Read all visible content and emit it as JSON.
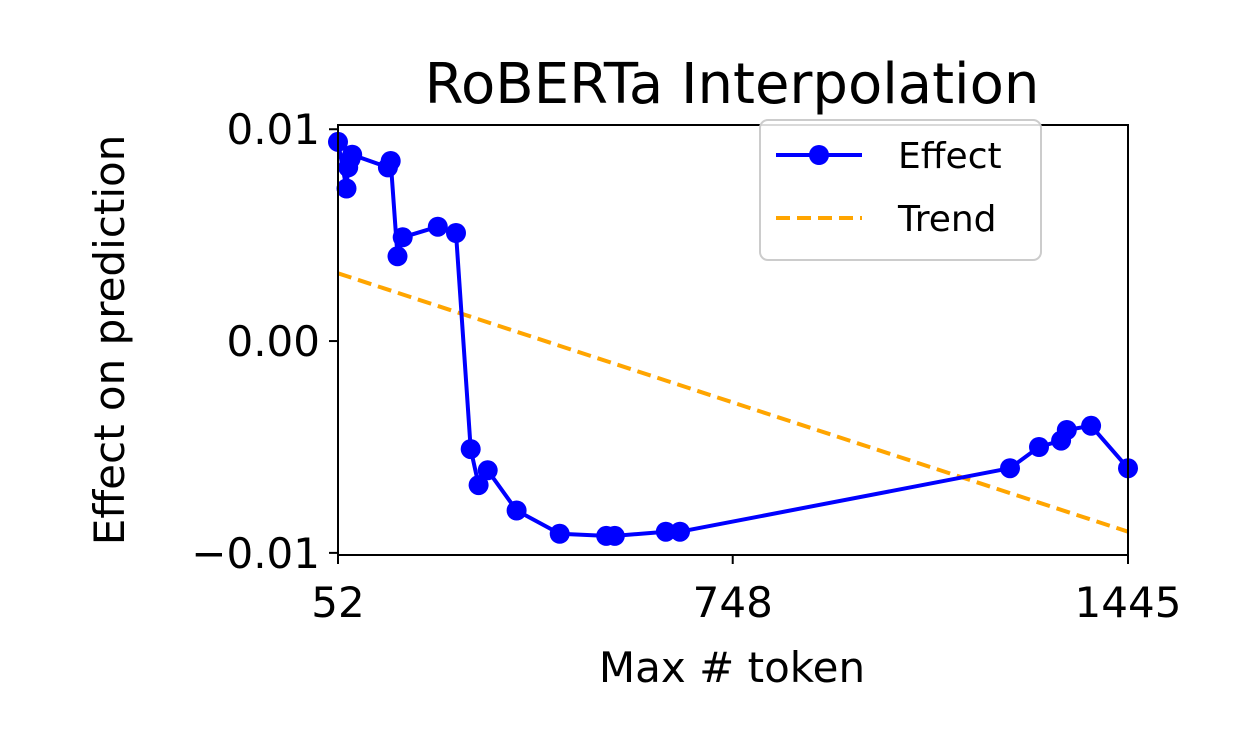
{
  "chart_data": {
    "type": "line",
    "title": "RoBERTa Interpolation",
    "xlabel": "Max # token",
    "ylabel": "Effect on prediction",
    "xlim": [
      52,
      1445
    ],
    "ylim": [
      -0.0101,
      0.0102
    ],
    "xticks": [
      52,
      748,
      1445
    ],
    "xtick_labels": [
      "52",
      "748",
      "1445"
    ],
    "yticks": [
      -0.01,
      0.0,
      0.01
    ],
    "ytick_labels": [
      "−0.01",
      "0.00",
      "0.01"
    ],
    "grid": false,
    "legend_position": "top-right",
    "series": [
      {
        "name": "Effect",
        "color": "#0000ff",
        "style": "solid-with-markers",
        "x": [
          52,
          67,
          70,
          74,
          77,
          140,
          145,
          157,
          166,
          228,
          260,
          286,
          300,
          316,
          367,
          443,
          525,
          540,
          630,
          655,
          1237,
          1288,
          1327,
          1337,
          1380,
          1445
        ],
        "y": [
          0.0094,
          0.0072,
          0.0082,
          0.0086,
          0.0088,
          0.0082,
          0.0085,
          0.004,
          0.0049,
          0.0054,
          0.0051,
          -0.0051,
          -0.0068,
          -0.0061,
          -0.008,
          -0.0091,
          -0.0092,
          -0.0092,
          -0.009,
          -0.009,
          -0.006,
          -0.005,
          -0.0047,
          -0.0042,
          -0.004,
          -0.006
        ]
      },
      {
        "name": "Trend",
        "color": "#ffa500",
        "style": "dashed",
        "x": [
          52,
          1445
        ],
        "y": [
          0.0032,
          -0.009
        ]
      }
    ]
  }
}
